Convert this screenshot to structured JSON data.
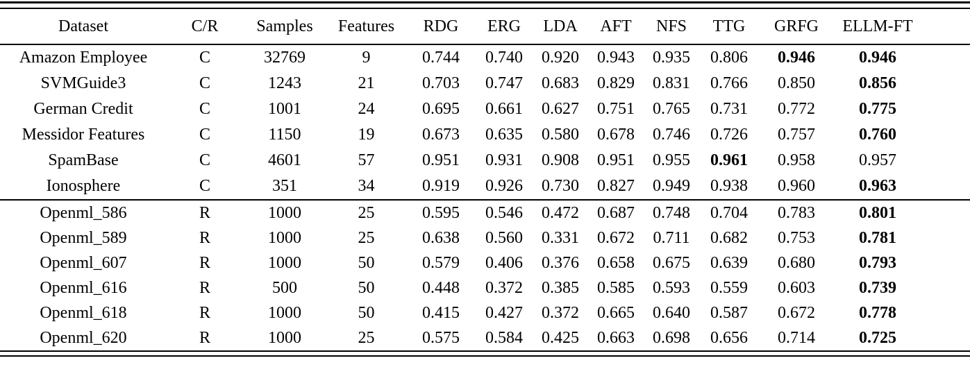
{
  "table": {
    "columns": [
      "Dataset",
      "C/R",
      "Samples",
      "Features",
      "RDG",
      "ERG",
      "LDA",
      "AFT",
      "NFS",
      "TTG",
      "GRFG",
      "ELLM-FT"
    ],
    "metric_columns": [
      "RDG",
      "ERG",
      "LDA",
      "AFT",
      "NFS",
      "TTG",
      "GRFG",
      "ELLM-FT"
    ],
    "sections": [
      {
        "name": "classification",
        "rows": [
          {
            "dataset": "Amazon Employee",
            "type": "C",
            "samples": "32769",
            "features": "9",
            "values": [
              "0.744",
              "0.740",
              "0.920",
              "0.943",
              "0.935",
              "0.806",
              "0.946",
              "0.946"
            ],
            "bold": [
              6,
              7
            ]
          },
          {
            "dataset": "SVMGuide3",
            "type": "C",
            "samples": "1243",
            "features": "21",
            "values": [
              "0.703",
              "0.747",
              "0.683",
              "0.829",
              "0.831",
              "0.766",
              "0.850",
              "0.856"
            ],
            "bold": [
              7
            ]
          },
          {
            "dataset": "German Credit",
            "type": "C",
            "samples": "1001",
            "features": "24",
            "values": [
              "0.695",
              "0.661",
              "0.627",
              "0.751",
              "0.765",
              "0.731",
              "0.772",
              "0.775"
            ],
            "bold": [
              7
            ]
          },
          {
            "dataset": "Messidor Features",
            "type": "C",
            "samples": "1150",
            "features": "19",
            "values": [
              "0.673",
              "0.635",
              "0.580",
              "0.678",
              "0.746",
              "0.726",
              "0.757",
              "0.760"
            ],
            "bold": [
              7
            ]
          },
          {
            "dataset": "SpamBase",
            "type": "C",
            "samples": "4601",
            "features": "57",
            "values": [
              "0.951",
              "0.931",
              "0.908",
              "0.951",
              "0.955",
              "0.961",
              "0.958",
              "0.957"
            ],
            "bold": [
              5
            ]
          },
          {
            "dataset": "Ionosphere",
            "type": "C",
            "samples": "351",
            "features": "34",
            "values": [
              "0.919",
              "0.926",
              "0.730",
              "0.827",
              "0.949",
              "0.938",
              "0.960",
              "0.963"
            ],
            "bold": [
              7
            ]
          }
        ]
      },
      {
        "name": "regression",
        "rows": [
          {
            "dataset": "Openml_586",
            "type": "R",
            "samples": "1000",
            "features": "25",
            "values": [
              "0.595",
              "0.546",
              "0.472",
              "0.687",
              "0.748",
              "0.704",
              "0.783",
              "0.801"
            ],
            "bold": [
              7
            ]
          },
          {
            "dataset": "Openml_589",
            "type": "R",
            "samples": "1000",
            "features": "25",
            "values": [
              "0.638",
              "0.560",
              "0.331",
              "0.672",
              "0.711",
              "0.682",
              "0.753",
              "0.781"
            ],
            "bold": [
              7
            ]
          },
          {
            "dataset": "Openml_607",
            "type": "R",
            "samples": "1000",
            "features": "50",
            "values": [
              "0.579",
              "0.406",
              "0.376",
              "0.658",
              "0.675",
              "0.639",
              "0.680",
              "0.793"
            ],
            "bold": [
              7
            ]
          },
          {
            "dataset": "Openml_616",
            "type": "R",
            "samples": "500",
            "features": "50",
            "values": [
              "0.448",
              "0.372",
              "0.385",
              "0.585",
              "0.593",
              "0.559",
              "0.603",
              "0.739"
            ],
            "bold": [
              7
            ]
          },
          {
            "dataset": "Openml_618",
            "type": "R",
            "samples": "1000",
            "features": "50",
            "values": [
              "0.415",
              "0.427",
              "0.372",
              "0.665",
              "0.640",
              "0.587",
              "0.672",
              "0.778"
            ],
            "bold": [
              7
            ]
          },
          {
            "dataset": "Openml_620",
            "type": "R",
            "samples": "1000",
            "features": "25",
            "values": [
              "0.575",
              "0.584",
              "0.425",
              "0.663",
              "0.698",
              "0.656",
              "0.714",
              "0.725"
            ],
            "bold": [
              7
            ]
          }
        ]
      }
    ],
    "colors": {
      "text": "#000000",
      "background": "#ffffff",
      "rule": "#000000"
    }
  }
}
